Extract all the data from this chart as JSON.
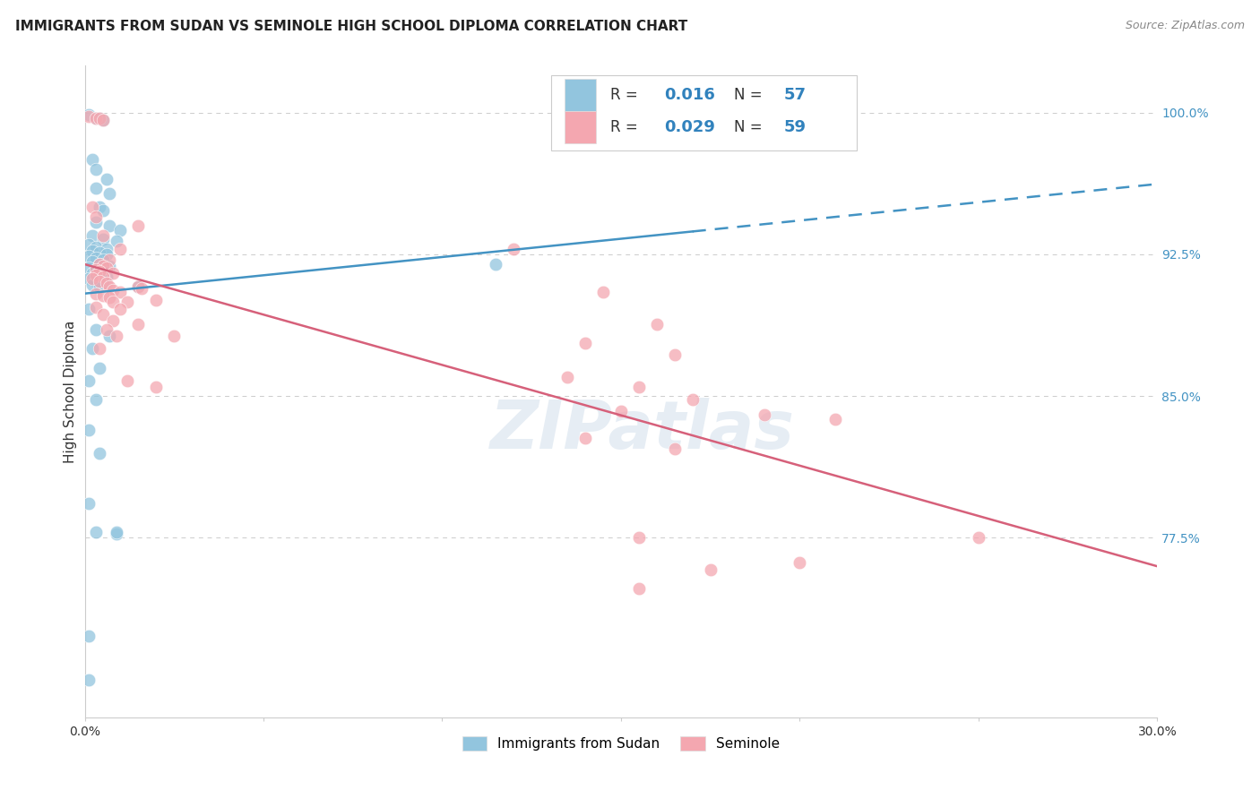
{
  "title": "IMMIGRANTS FROM SUDAN VS SEMINOLE HIGH SCHOOL DIPLOMA CORRELATION CHART",
  "source": "Source: ZipAtlas.com",
  "ylabel": "High School Diploma",
  "ytick_labels": [
    "77.5%",
    "85.0%",
    "92.5%",
    "100.0%"
  ],
  "ytick_values": [
    0.775,
    0.85,
    0.925,
    1.0
  ],
  "xlim": [
    0.0,
    0.3
  ],
  "ylim": [
    0.68,
    1.025
  ],
  "legend_label1": "Immigrants from Sudan",
  "legend_label2": "Seminole",
  "blue_color": "#92c5de",
  "pink_color": "#f4a7b0",
  "blue_line_color": "#4393c3",
  "pink_line_color": "#d6607a",
  "blue_scatter": [
    [
      0.001,
      0.999
    ],
    [
      0.003,
      0.997
    ],
    [
      0.004,
      0.997
    ],
    [
      0.005,
      0.996
    ],
    [
      0.002,
      0.975
    ],
    [
      0.003,
      0.97
    ],
    [
      0.006,
      0.965
    ],
    [
      0.003,
      0.96
    ],
    [
      0.007,
      0.957
    ],
    [
      0.004,
      0.95
    ],
    [
      0.005,
      0.948
    ],
    [
      0.003,
      0.942
    ],
    [
      0.007,
      0.94
    ],
    [
      0.01,
      0.938
    ],
    [
      0.002,
      0.935
    ],
    [
      0.005,
      0.933
    ],
    [
      0.009,
      0.932
    ],
    [
      0.001,
      0.93
    ],
    [
      0.003,
      0.929
    ],
    [
      0.006,
      0.928
    ],
    [
      0.002,
      0.927
    ],
    [
      0.004,
      0.926
    ],
    [
      0.006,
      0.925
    ],
    [
      0.001,
      0.924
    ],
    [
      0.003,
      0.923
    ],
    [
      0.005,
      0.922
    ],
    [
      0.002,
      0.921
    ],
    [
      0.004,
      0.92
    ],
    [
      0.007,
      0.919
    ],
    [
      0.001,
      0.918
    ],
    [
      0.003,
      0.917
    ],
    [
      0.005,
      0.916
    ],
    [
      0.002,
      0.915
    ],
    [
      0.004,
      0.914
    ],
    [
      0.006,
      0.913
    ],
    [
      0.001,
      0.912
    ],
    [
      0.003,
      0.911
    ],
    [
      0.005,
      0.91
    ],
    [
      0.002,
      0.909
    ],
    [
      0.004,
      0.908
    ],
    [
      0.015,
      0.908
    ],
    [
      0.001,
      0.896
    ],
    [
      0.003,
      0.885
    ],
    [
      0.007,
      0.882
    ],
    [
      0.002,
      0.875
    ],
    [
      0.004,
      0.865
    ],
    [
      0.001,
      0.858
    ],
    [
      0.003,
      0.848
    ],
    [
      0.001,
      0.832
    ],
    [
      0.004,
      0.82
    ],
    [
      0.001,
      0.793
    ],
    [
      0.003,
      0.778
    ],
    [
      0.009,
      0.777
    ],
    [
      0.001,
      0.723
    ],
    [
      0.009,
      0.778
    ],
    [
      0.001,
      0.7
    ],
    [
      0.115,
      0.92
    ]
  ],
  "pink_scatter": [
    [
      0.001,
      0.998
    ],
    [
      0.003,
      0.997
    ],
    [
      0.004,
      0.997
    ],
    [
      0.005,
      0.996
    ],
    [
      0.002,
      0.95
    ],
    [
      0.003,
      0.945
    ],
    [
      0.015,
      0.94
    ],
    [
      0.005,
      0.935
    ],
    [
      0.01,
      0.928
    ],
    [
      0.007,
      0.922
    ],
    [
      0.004,
      0.92
    ],
    [
      0.005,
      0.919
    ],
    [
      0.006,
      0.918
    ],
    [
      0.003,
      0.917
    ],
    [
      0.004,
      0.916
    ],
    [
      0.008,
      0.915
    ],
    [
      0.003,
      0.914
    ],
    [
      0.005,
      0.913
    ],
    [
      0.002,
      0.912
    ],
    [
      0.004,
      0.911
    ],
    [
      0.006,
      0.91
    ],
    [
      0.007,
      0.908
    ],
    [
      0.015,
      0.908
    ],
    [
      0.016,
      0.907
    ],
    [
      0.008,
      0.906
    ],
    [
      0.01,
      0.905
    ],
    [
      0.003,
      0.904
    ],
    [
      0.005,
      0.903
    ],
    [
      0.007,
      0.902
    ],
    [
      0.02,
      0.901
    ],
    [
      0.008,
      0.9
    ],
    [
      0.012,
      0.9
    ],
    [
      0.003,
      0.897
    ],
    [
      0.01,
      0.896
    ],
    [
      0.005,
      0.893
    ],
    [
      0.008,
      0.89
    ],
    [
      0.015,
      0.888
    ],
    [
      0.006,
      0.885
    ],
    [
      0.009,
      0.882
    ],
    [
      0.025,
      0.882
    ],
    [
      0.004,
      0.875
    ],
    [
      0.012,
      0.858
    ],
    [
      0.02,
      0.855
    ],
    [
      0.12,
      0.928
    ],
    [
      0.145,
      0.905
    ],
    [
      0.16,
      0.888
    ],
    [
      0.14,
      0.878
    ],
    [
      0.165,
      0.872
    ],
    [
      0.135,
      0.86
    ],
    [
      0.155,
      0.855
    ],
    [
      0.17,
      0.848
    ],
    [
      0.15,
      0.842
    ],
    [
      0.14,
      0.828
    ],
    [
      0.165,
      0.822
    ],
    [
      0.19,
      0.84
    ],
    [
      0.21,
      0.838
    ],
    [
      0.155,
      0.775
    ],
    [
      0.25,
      0.775
    ],
    [
      0.2,
      0.762
    ],
    [
      0.175,
      0.758
    ],
    [
      0.155,
      0.748
    ]
  ],
  "watermark": "ZIPatlas",
  "background_color": "#ffffff",
  "grid_color": "#cccccc"
}
